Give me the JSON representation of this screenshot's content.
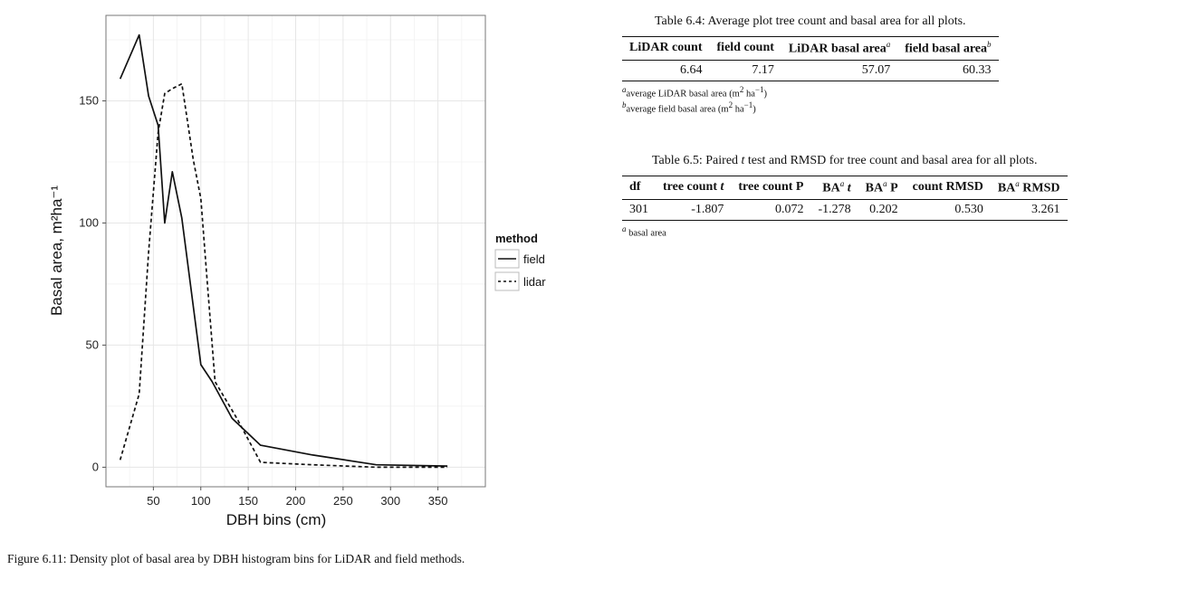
{
  "figure": {
    "caption": "Figure 6.11: Density plot of basal area by DBH histogram bins for LiDAR and field methods.",
    "chart_data": {
      "type": "line",
      "xlabel": "DBH bins (cm)",
      "ylabel": "Basal area, m²ha⁻¹",
      "xlim": [
        0,
        400
      ],
      "ylim": [
        -8,
        185
      ],
      "x_ticks": [
        50,
        100,
        150,
        200,
        250,
        300,
        350
      ],
      "y_ticks": [
        0,
        50,
        100,
        150
      ],
      "legend_title": "method",
      "legend_position": "right",
      "grid": true,
      "series": [
        {
          "name": "field",
          "style": "solid",
          "x": [
            15,
            35,
            45,
            55,
            62,
            70,
            80,
            100,
            112,
            133,
            163,
            218,
            285,
            360
          ],
          "y": [
            159,
            177,
            152,
            140,
            100,
            121,
            102,
            42,
            35,
            20,
            9,
            5,
            1,
            0.5
          ]
        },
        {
          "name": "lidar",
          "style": "dashed",
          "x": [
            15,
            35,
            45,
            55,
            62,
            70,
            80,
            92,
            100,
            106,
            115,
            138,
            163,
            218,
            285,
            360
          ],
          "y": [
            3,
            30,
            88,
            137,
            153,
            155,
            157,
            126,
            110,
            80,
            35,
            20,
            2,
            1,
            0,
            0
          ]
        }
      ]
    }
  },
  "table64": {
    "caption": "Table 6.4: Average plot tree count and basal area for all plots.",
    "headers": [
      {
        "text": "LiDAR count",
        "sup": ""
      },
      {
        "text": "field count",
        "sup": ""
      },
      {
        "text": "LiDAR basal area",
        "sup": "a"
      },
      {
        "text": "field basal area",
        "sup": "b"
      }
    ],
    "rows": [
      [
        "6.64",
        "7.17",
        "57.07",
        "60.33"
      ]
    ],
    "footnotes": [
      {
        "mark": "a",
        "text": "average LiDAR basal area (m",
        "unit_mid": "2",
        "unit_text": " ha",
        "unit_end": "−1",
        "close": ")"
      },
      {
        "mark": "b",
        "text": "average field basal area (m",
        "unit_mid": "2",
        "unit_text": " ha",
        "unit_end": "−1",
        "close": ")"
      }
    ]
  },
  "table65": {
    "caption_pre": "Table 6.5: Paired ",
    "caption_t": "t",
    "caption_post": " test and RMSD for tree count and basal area for all plots.",
    "headers": [
      {
        "text": "df",
        "sup": "",
        "post": "",
        "italic": ""
      },
      {
        "text": "tree count ",
        "sup": "",
        "post": "",
        "italic": "t"
      },
      {
        "text": "tree count P",
        "sup": "",
        "post": "",
        "italic": ""
      },
      {
        "text": "BA",
        "sup": "a",
        "post": " ",
        "italic": "t"
      },
      {
        "text": "BA",
        "sup": "a",
        "post": " P",
        "italic": ""
      },
      {
        "text": "count RMSD",
        "sup": "",
        "post": "",
        "italic": ""
      },
      {
        "text": "BA",
        "sup": "a",
        "post": " RMSD",
        "italic": ""
      }
    ],
    "rows": [
      [
        "301",
        "-1.807",
        "0.072",
        "-1.278",
        "0.202",
        "0.530",
        "3.261"
      ]
    ],
    "footnote_mark": "a",
    "footnote_text": "basal area"
  }
}
